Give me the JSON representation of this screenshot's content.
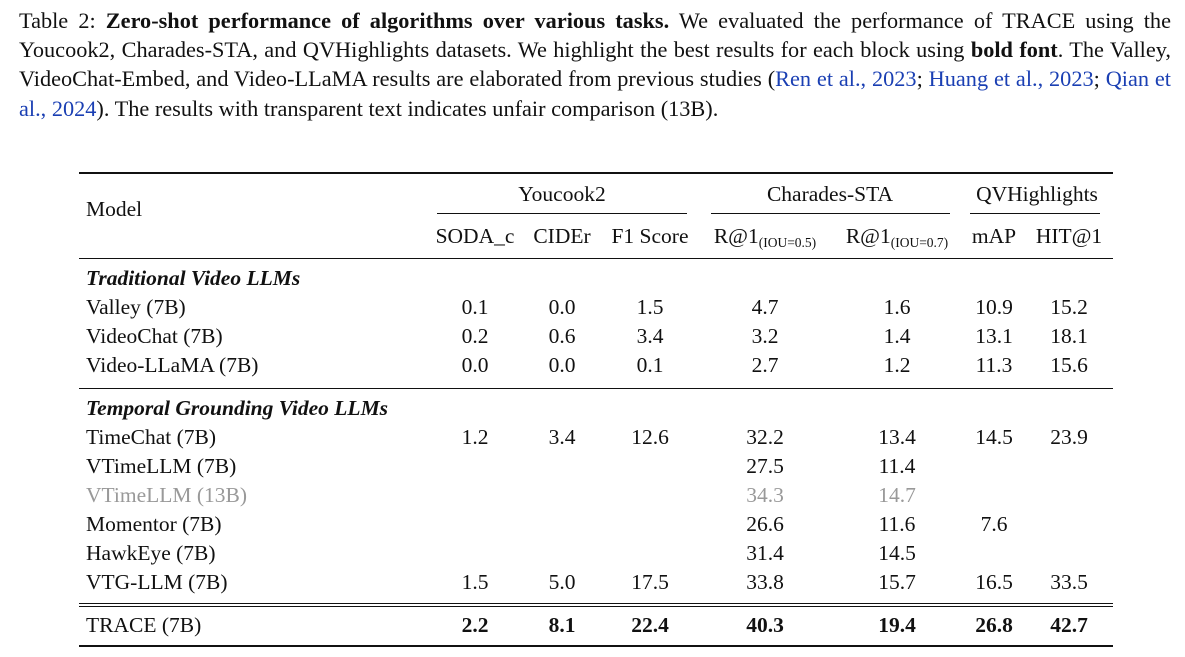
{
  "caption": {
    "label": "Table 2:",
    "bold_title": "Zero-shot performance of algorithms over various tasks.",
    "text_1": "We evaluated the performance of TRACE using the Youcook2, Charades-STA, and QVHighlights datasets. We highlight the best results for each block using",
    "bold_phrase": "bold font",
    "text_2": ". The Valley, VideoChat-Embed, and Video-LLaMA results are elaborated from previous studies (",
    "cite_1": "Ren et al., 2023",
    "sep_1": "; ",
    "cite_2": "Huang et al., 2023",
    "sep_2": "; ",
    "cite_3": "Qian et al., 2024",
    "text_3": "). The results with transparent text indicates unfair comparison (13B)."
  },
  "header": {
    "model": "Model",
    "groups": [
      "Youcook2",
      "Charades-STA",
      "QVHighlights"
    ],
    "metrics": [
      "SODA_c",
      "CIDEr",
      "F1 Score",
      "R@1",
      "R@1",
      "mAP",
      "HIT@1"
    ],
    "metric_subscripts": [
      "(IOU=0.5)",
      "(IOU=0.7)"
    ]
  },
  "sections": [
    {
      "title": "Traditional Video LLMs",
      "rows": [
        {
          "model": "Valley (7B)",
          "values": [
            "0.1",
            "0.0",
            "1.5",
            "4.7",
            "1.6",
            "10.9",
            "15.2"
          ]
        },
        {
          "model": "VideoChat (7B)",
          "values": [
            "0.2",
            "0.6",
            "3.4",
            "3.2",
            "1.4",
            "13.1",
            "18.1"
          ]
        },
        {
          "model": "Video-LLaMA (7B)",
          "values": [
            "0.0",
            "0.0",
            "0.1",
            "2.7",
            "1.2",
            "11.3",
            "15.6"
          ]
        }
      ]
    },
    {
      "title": "Temporal Grounding Video LLMs",
      "rows": [
        {
          "model": "TimeChat (7B)",
          "values": [
            "1.2",
            "3.4",
            "12.6",
            "32.2",
            "13.4",
            "14.5",
            "23.9"
          ]
        },
        {
          "model": "VTimeLLM (7B)",
          "values": [
            "",
            "",
            "",
            "27.5",
            "11.4",
            "",
            ""
          ]
        },
        {
          "model": "VTimeLLM (13B)",
          "values": [
            "",
            "",
            "",
            "34.3",
            "14.7",
            "",
            ""
          ],
          "faded": true
        },
        {
          "model": "Momentor (7B)",
          "values": [
            "",
            "",
            "",
            "26.6",
            "11.6",
            "7.6",
            ""
          ]
        },
        {
          "model": "HawkEye (7B)",
          "values": [
            "",
            "",
            "",
            "31.4",
            "14.5",
            "",
            ""
          ]
        },
        {
          "model": "VTG-LLM (7B)",
          "values": [
            "1.5",
            "5.0",
            "17.5",
            "33.8",
            "15.7",
            "16.5",
            "33.5"
          ]
        }
      ]
    }
  ],
  "final_row": {
    "model": "TRACE (7B)",
    "values": [
      "2.2",
      "8.1",
      "22.4",
      "40.3",
      "19.4",
      "26.8",
      "42.7"
    ],
    "bold": true
  }
}
